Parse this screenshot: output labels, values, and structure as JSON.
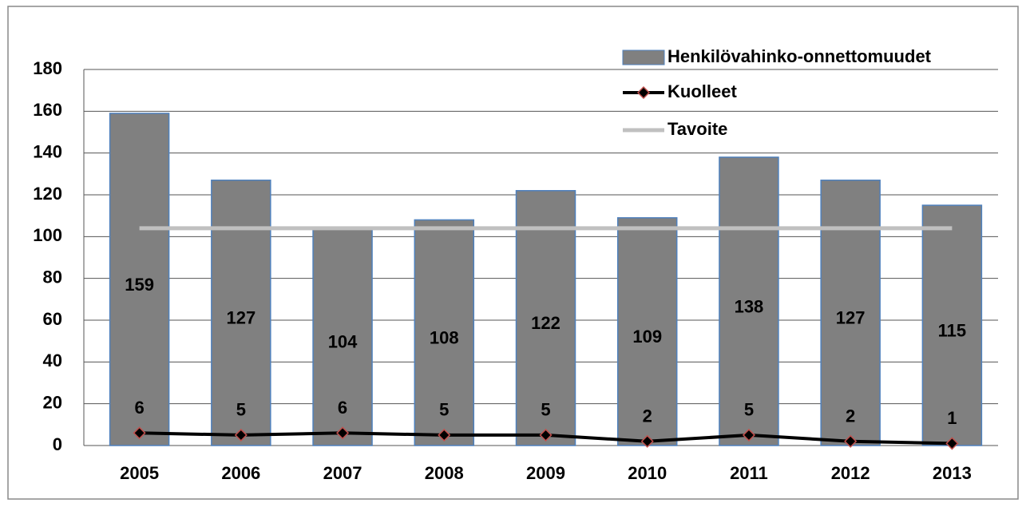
{
  "chart_data": {
    "type": "bar",
    "categories": [
      "2005",
      "2006",
      "2007",
      "2008",
      "2009",
      "2010",
      "2011",
      "2012",
      "2013"
    ],
    "series": [
      {
        "name": "Henkilövahinko-onnettomuudet",
        "type": "bar",
        "color": "#808080",
        "values": [
          159,
          127,
          104,
          108,
          122,
          109,
          138,
          127,
          115
        ]
      },
      {
        "name": "Kuolleet",
        "type": "line",
        "color": "#000000",
        "values": [
          6,
          5,
          6,
          5,
          5,
          2,
          5,
          2,
          1
        ]
      },
      {
        "name": "Tavoite",
        "type": "line",
        "color": "#c0c0c0",
        "values": [
          104,
          104,
          104,
          104,
          104,
          104,
          104,
          104,
          104
        ]
      }
    ],
    "ylim": [
      0,
      180
    ],
    "yticks": [
      0,
      20,
      40,
      60,
      80,
      100,
      120,
      140,
      160,
      180
    ],
    "grid": true,
    "legend": "top-right"
  }
}
